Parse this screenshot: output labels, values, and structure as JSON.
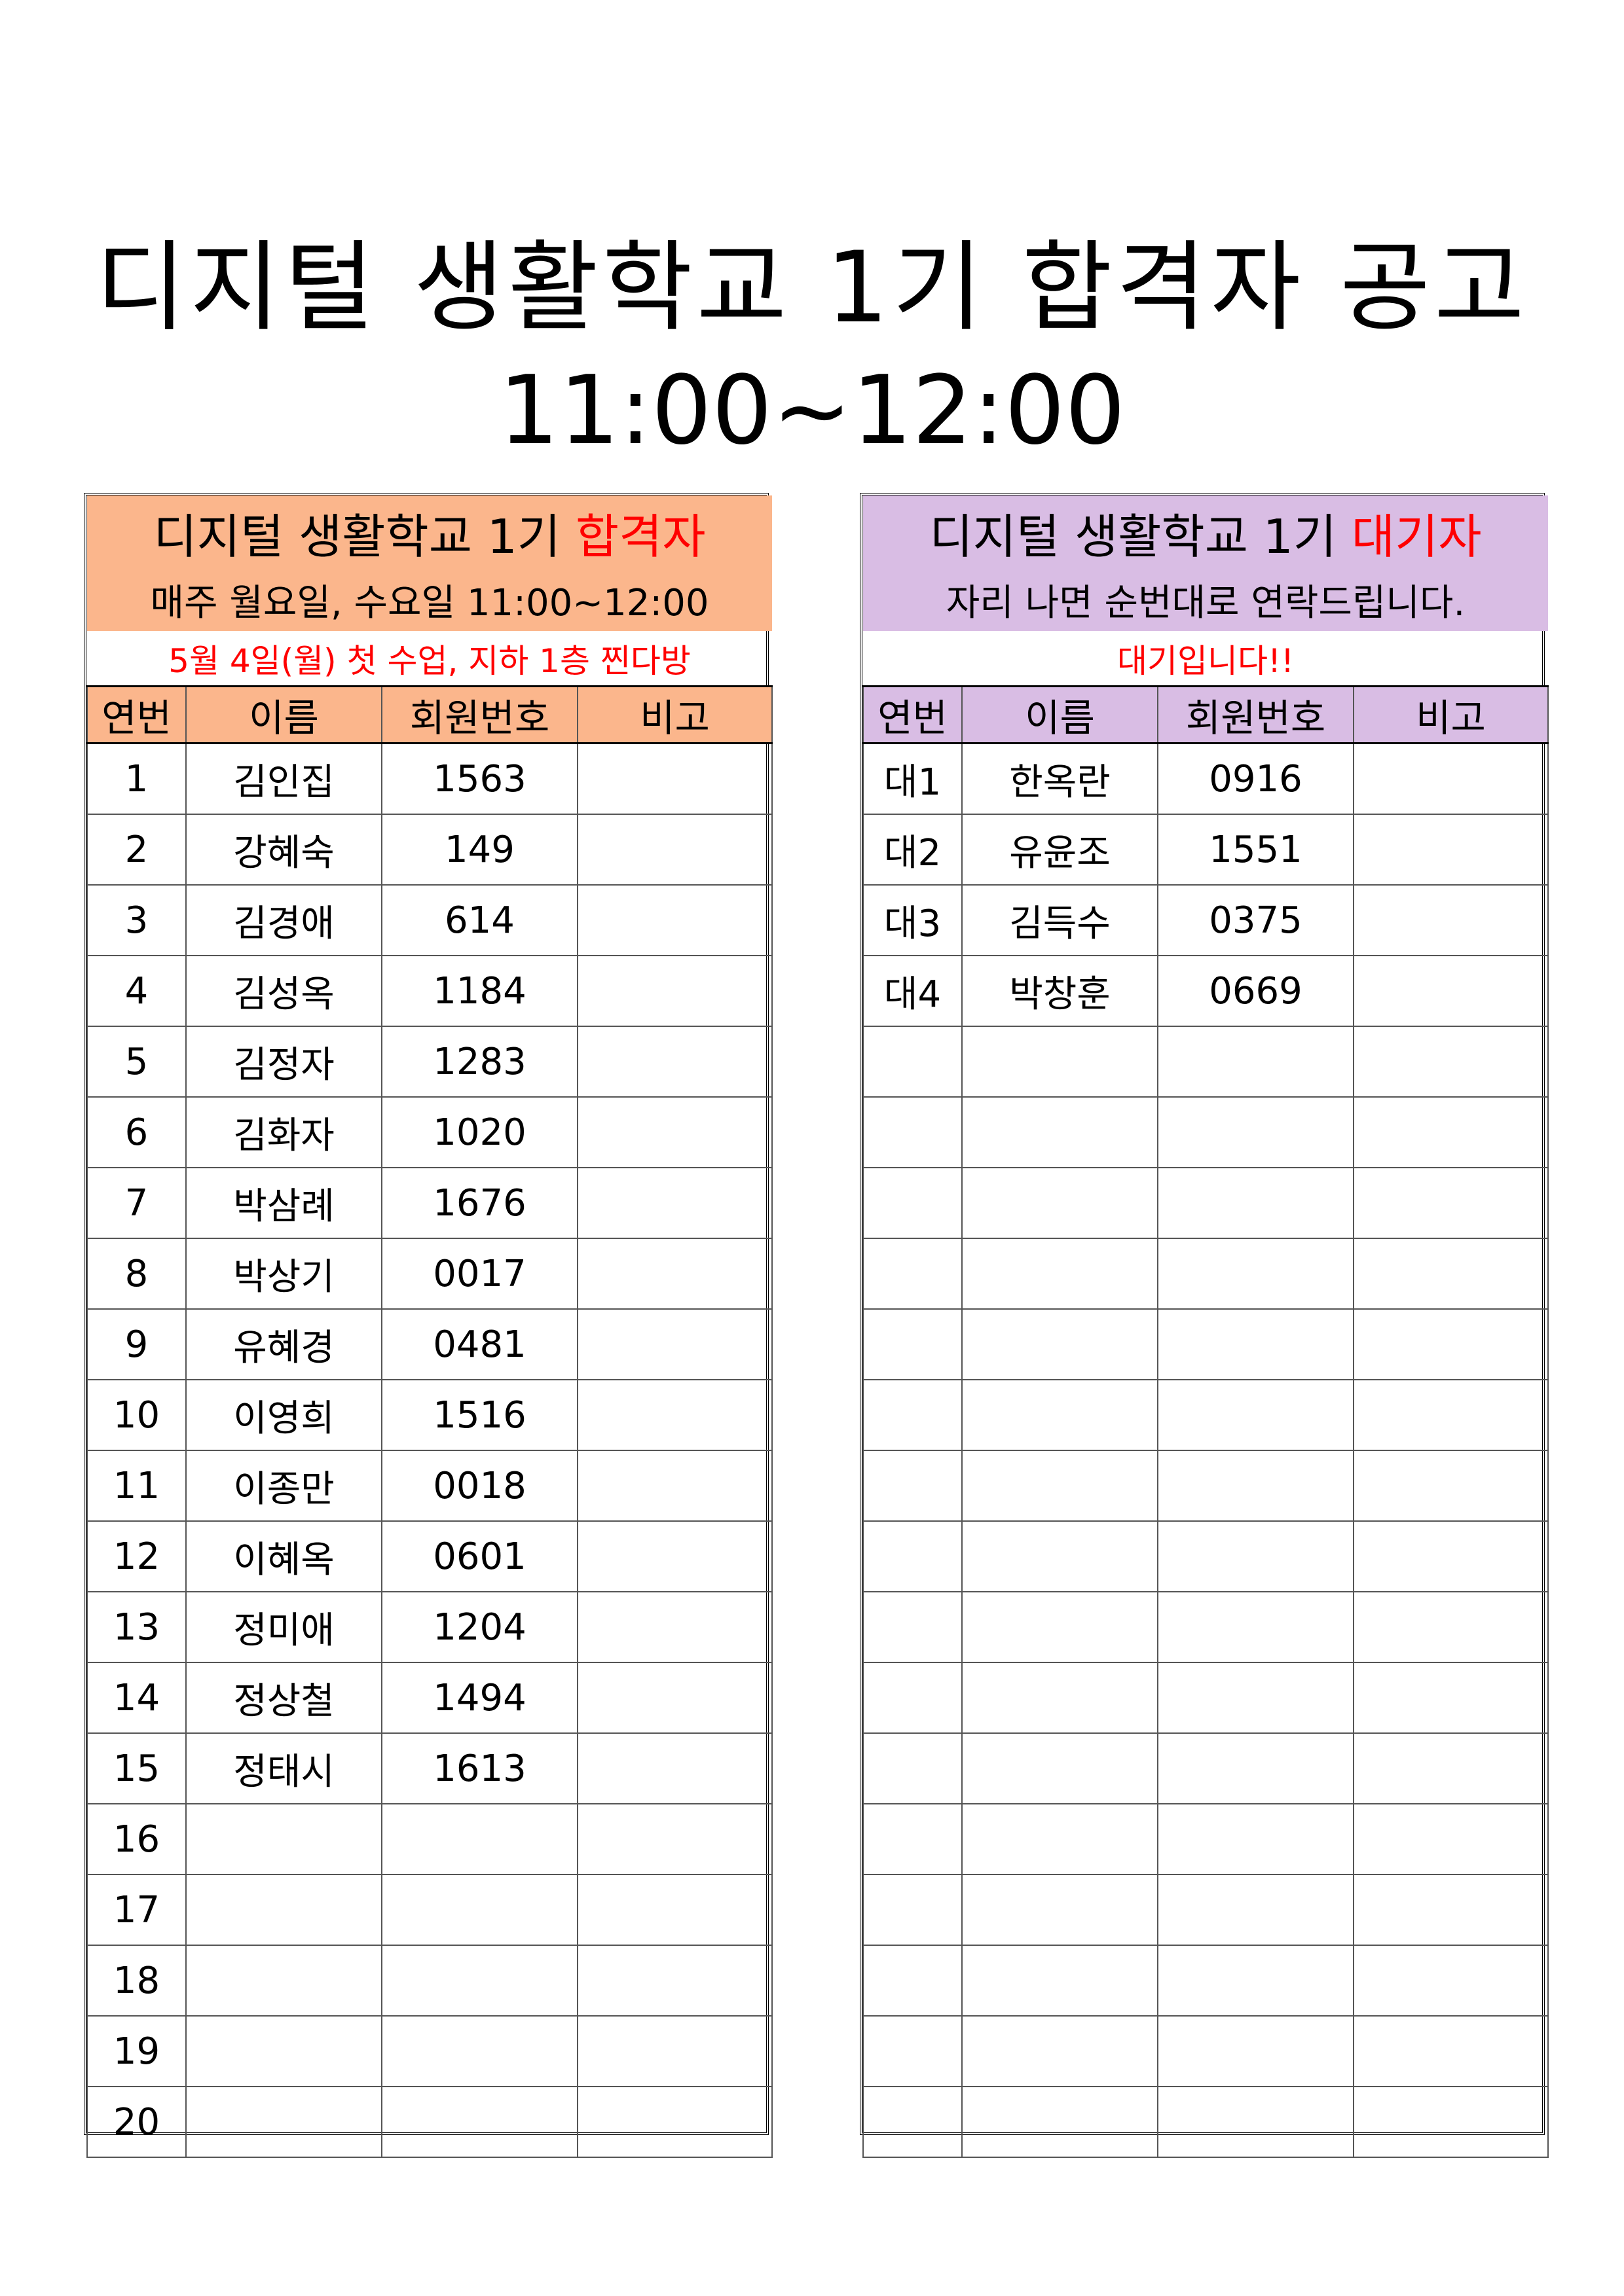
{
  "title": {
    "line1": "디지털 생활학교 1기 합격자 공고",
    "line2": "11:00~12:00"
  },
  "colors": {
    "accepted_header": "#FBB68C",
    "waitlist_header": "#D9BDE4",
    "highlight": "#FF0000"
  },
  "accepted": {
    "title_prefix": "디지털 생활학교 1기",
    "title_highlight": "합격자",
    "subtitle": "매주 월요일, 수요일 11:00~12:00",
    "notice": "5월 4일(월) 첫 수업, 지하 1층 찐다방",
    "columns": [
      "연번",
      "이름",
      "회원번호",
      "비고"
    ],
    "rows": [
      [
        "1",
        "김인집",
        "1563",
        ""
      ],
      [
        "2",
        "강혜숙",
        "149",
        ""
      ],
      [
        "3",
        "김경애",
        "614",
        ""
      ],
      [
        "4",
        "김성옥",
        "1184",
        ""
      ],
      [
        "5",
        "김정자",
        "1283",
        ""
      ],
      [
        "6",
        "김화자",
        "1020",
        ""
      ],
      [
        "7",
        "박삼례",
        "1676",
        ""
      ],
      [
        "8",
        "박상기",
        "0017",
        ""
      ],
      [
        "9",
        "유혜경",
        "0481",
        ""
      ],
      [
        "10",
        "이영희",
        "1516",
        ""
      ],
      [
        "11",
        "이종만",
        "0018",
        ""
      ],
      [
        "12",
        "이혜옥",
        "0601",
        ""
      ],
      [
        "13",
        "정미애",
        "1204",
        ""
      ],
      [
        "14",
        "정상철",
        "1494",
        ""
      ],
      [
        "15",
        "정태시",
        "1613",
        ""
      ],
      [
        "16",
        "",
        "",
        ""
      ],
      [
        "17",
        "",
        "",
        ""
      ],
      [
        "18",
        "",
        "",
        ""
      ],
      [
        "19",
        "",
        "",
        ""
      ],
      [
        "20",
        "",
        "",
        ""
      ]
    ]
  },
  "waitlist": {
    "title_prefix": "디지털 생활학교 1기",
    "title_highlight": "대기자",
    "subtitle": "자리 나면 순번대로 연락드립니다.",
    "notice": "대기입니다!!",
    "columns": [
      "연번",
      "이름",
      "회원번호",
      "비고"
    ],
    "rows": [
      [
        "대1",
        "한옥란",
        "0916",
        ""
      ],
      [
        "대2",
        "유윤조",
        "1551",
        ""
      ],
      [
        "대3",
        "김득수",
        "0375",
        ""
      ],
      [
        "대4",
        "박창훈",
        "0669",
        ""
      ],
      [
        "",
        "",
        "",
        ""
      ],
      [
        "",
        "",
        "",
        ""
      ],
      [
        "",
        "",
        "",
        ""
      ],
      [
        "",
        "",
        "",
        ""
      ],
      [
        "",
        "",
        "",
        ""
      ],
      [
        "",
        "",
        "",
        ""
      ],
      [
        "",
        "",
        "",
        ""
      ],
      [
        "",
        "",
        "",
        ""
      ],
      [
        "",
        "",
        "",
        ""
      ],
      [
        "",
        "",
        "",
        ""
      ],
      [
        "",
        "",
        "",
        ""
      ],
      [
        "",
        "",
        "",
        ""
      ],
      [
        "",
        "",
        "",
        ""
      ],
      [
        "",
        "",
        "",
        ""
      ],
      [
        "",
        "",
        "",
        ""
      ],
      [
        "",
        "",
        "",
        ""
      ]
    ]
  }
}
